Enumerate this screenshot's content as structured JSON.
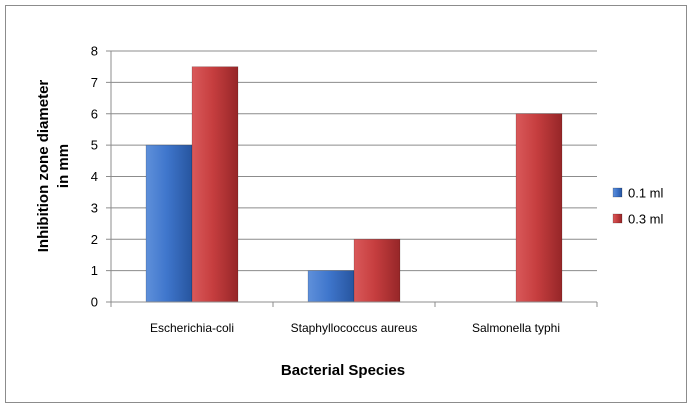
{
  "chart_data": {
    "type": "bar",
    "title": "",
    "xlabel": "Bacterial  Species",
    "ylabel_lines": [
      "Inhibition zone diameter",
      "in mm"
    ],
    "categories": [
      "Escherichia-coli",
      "Staphyllococcus aureus",
      "Salmonella typhi"
    ],
    "series": [
      {
        "name": "0.1 ml",
        "values": [
          5,
          1,
          0
        ],
        "color": "#3a6fc4"
      },
      {
        "name": "0.3 ml",
        "values": [
          7.5,
          2,
          6
        ],
        "color": "#c0393b"
      }
    ],
    "ylim": [
      0,
      8
    ],
    "yticks": [
      "0",
      "1",
      "2",
      "3",
      "4",
      "5",
      "6",
      "7",
      "8"
    ],
    "grid": true,
    "legend_position": "right"
  }
}
